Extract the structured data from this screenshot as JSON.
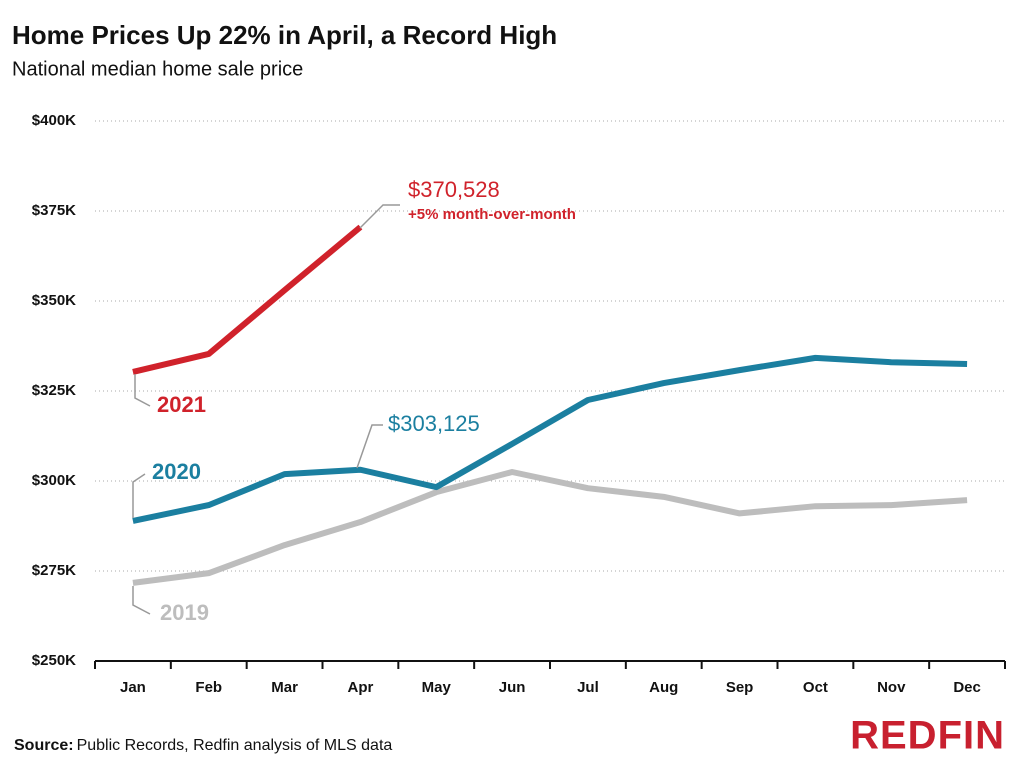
{
  "chart_data": {
    "type": "line",
    "title": "Home Prices Up 22% in April, a Record High",
    "subtitle": "National median home sale price",
    "categories": [
      "Jan",
      "Feb",
      "Mar",
      "Apr",
      "May",
      "Jun",
      "Jul",
      "Aug",
      "Sep",
      "Oct",
      "Nov",
      "Dec"
    ],
    "series": [
      {
        "name": "2021",
        "color": "#d0222b",
        "values": [
          330300,
          335300,
          353000,
          370528,
          null,
          null,
          null,
          null,
          null,
          null,
          null,
          null
        ],
        "value_labels": [
          null,
          null,
          null,
          "$370,528",
          null,
          null,
          null,
          null,
          null,
          null,
          null,
          null
        ]
      },
      {
        "name": "2020",
        "color": "#1b7fa0",
        "values": [
          288900,
          293300,
          301900,
          303125,
          298300,
          310300,
          322500,
          327200,
          330800,
          334200,
          333000,
          332500
        ],
        "value_labels": [
          null,
          null,
          null,
          "$303,125",
          null,
          null,
          null,
          null,
          null,
          null,
          null,
          null
        ]
      },
      {
        "name": "2019",
        "color": "#bdbdbd",
        "values": [
          271700,
          274400,
          282200,
          288600,
          296900,
          302500,
          298000,
          295600,
          291000,
          293000,
          293300,
          294700
        ]
      }
    ],
    "annotation": "+5% month-over-month",
    "ylim": [
      250000,
      400000
    ],
    "yticks": [
      {
        "value": 250000,
        "label": "$250K"
      },
      {
        "value": 275000,
        "label": "$275K"
      },
      {
        "value": 300000,
        "label": "$300K"
      },
      {
        "value": 325000,
        "label": "$325K"
      },
      {
        "value": 350000,
        "label": "$350K"
      },
      {
        "value": 375000,
        "label": "$375K"
      },
      {
        "value": 400000,
        "label": "$400K"
      }
    ],
    "grid": true,
    "source_label": "Source:",
    "source": "Public Records, Redfin analysis of MLS data",
    "logo": "REDFIN"
  }
}
